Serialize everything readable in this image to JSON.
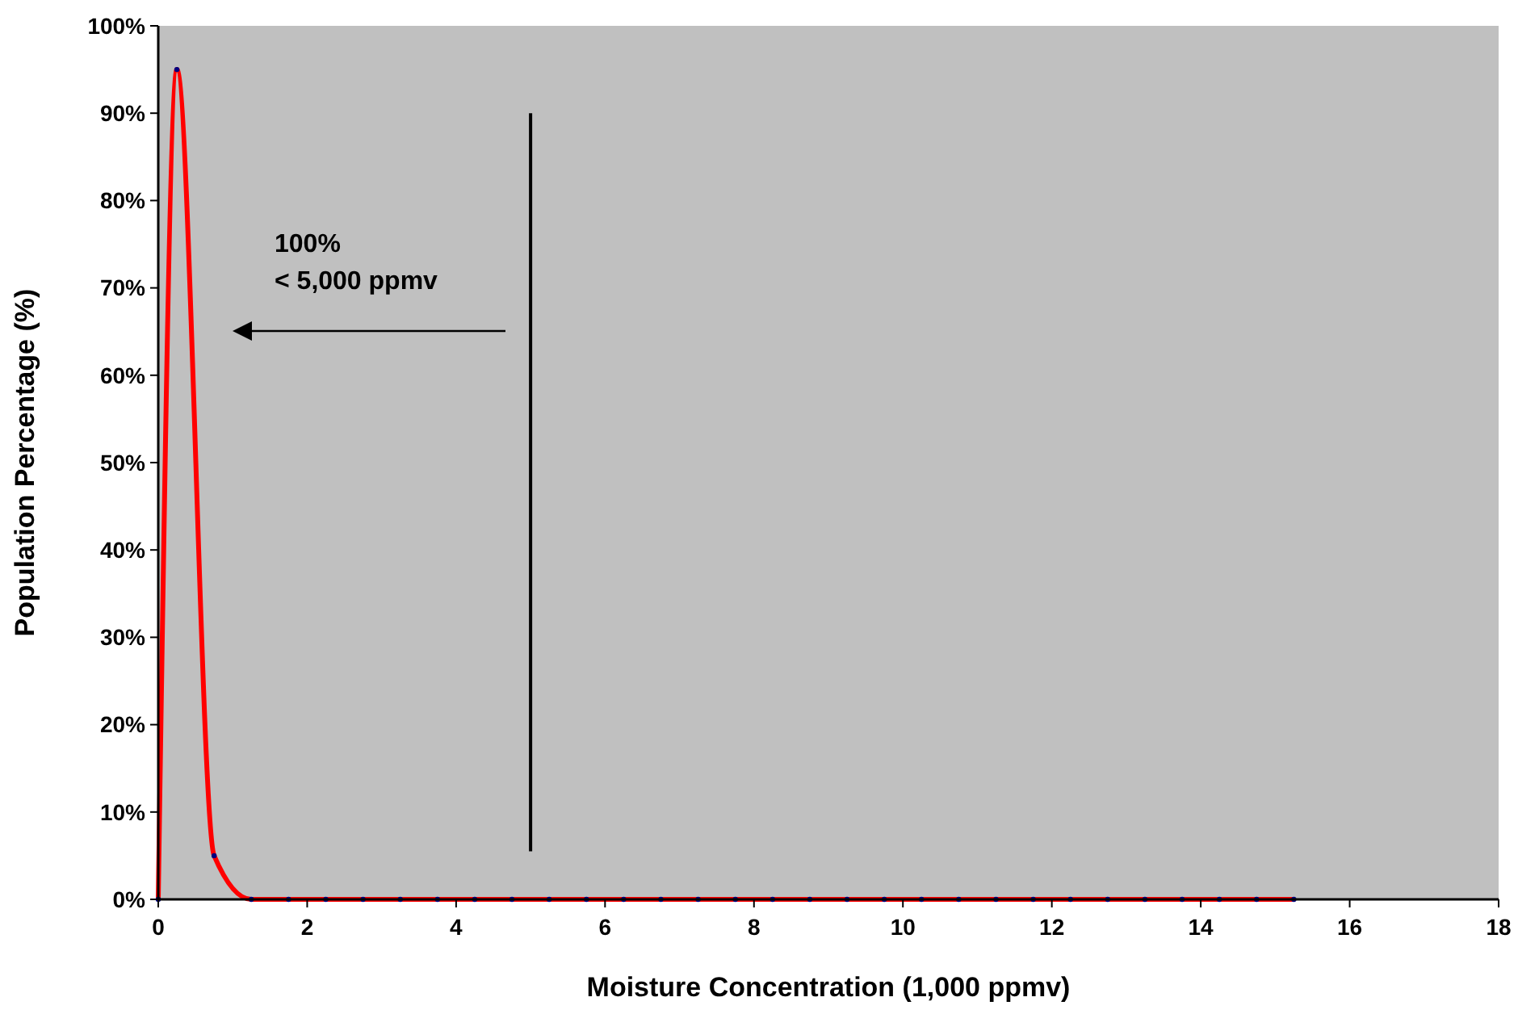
{
  "chart_data": {
    "type": "line",
    "xlabel": "Moisture Concentration (1,000 ppmv)",
    "ylabel": "Population Percentage (%)",
    "x": [
      0,
      0.25,
      0.75,
      1.25,
      1.75,
      2.25,
      2.75,
      3.25,
      3.75,
      4.25,
      4.75,
      5.25,
      5.75,
      6.25,
      6.75,
      7.25,
      7.75,
      8.25,
      8.75,
      9.25,
      9.75,
      10.25,
      10.75,
      11.25,
      11.75,
      12.25,
      12.75,
      13.25,
      13.75,
      14.25,
      14.75,
      15.25
    ],
    "series": [
      {
        "color": "#ff0000",
        "values": [
          0,
          95,
          5,
          0,
          0,
          0,
          0,
          0,
          0,
          0,
          0,
          0,
          0,
          0,
          0,
          0,
          0,
          0,
          0,
          0,
          0,
          0,
          0,
          0,
          0,
          0,
          0,
          0,
          0,
          0,
          0,
          0
        ]
      }
    ],
    "xlim": [
      0,
      18
    ],
    "xticks": [
      0,
      2,
      4,
      6,
      8,
      10,
      12,
      14,
      16,
      18
    ],
    "ylim": [
      0,
      100
    ],
    "yticks": [
      {
        "value": 0,
        "label": "0%"
      },
      {
        "value": 10,
        "label": "10%"
      },
      {
        "value": 20,
        "label": "20%"
      },
      {
        "value": 30,
        "label": "30%"
      },
      {
        "value": 40,
        "label": "40%"
      },
      {
        "value": 50,
        "label": "50%"
      },
      {
        "value": 60,
        "label": "60%"
      },
      {
        "value": 70,
        "label": "70%"
      },
      {
        "value": 80,
        "label": "80%"
      },
      {
        "value": 90,
        "label": "90%"
      },
      {
        "value": 100,
        "label": "100%"
      }
    ],
    "ref_lines": [
      {
        "axis": "x",
        "value": 5,
        "color": "#000000"
      }
    ],
    "annotations": [
      "100%\n< 5,000 ppmv"
    ],
    "marker": "circle",
    "line_style": "solid",
    "grid": false
  }
}
